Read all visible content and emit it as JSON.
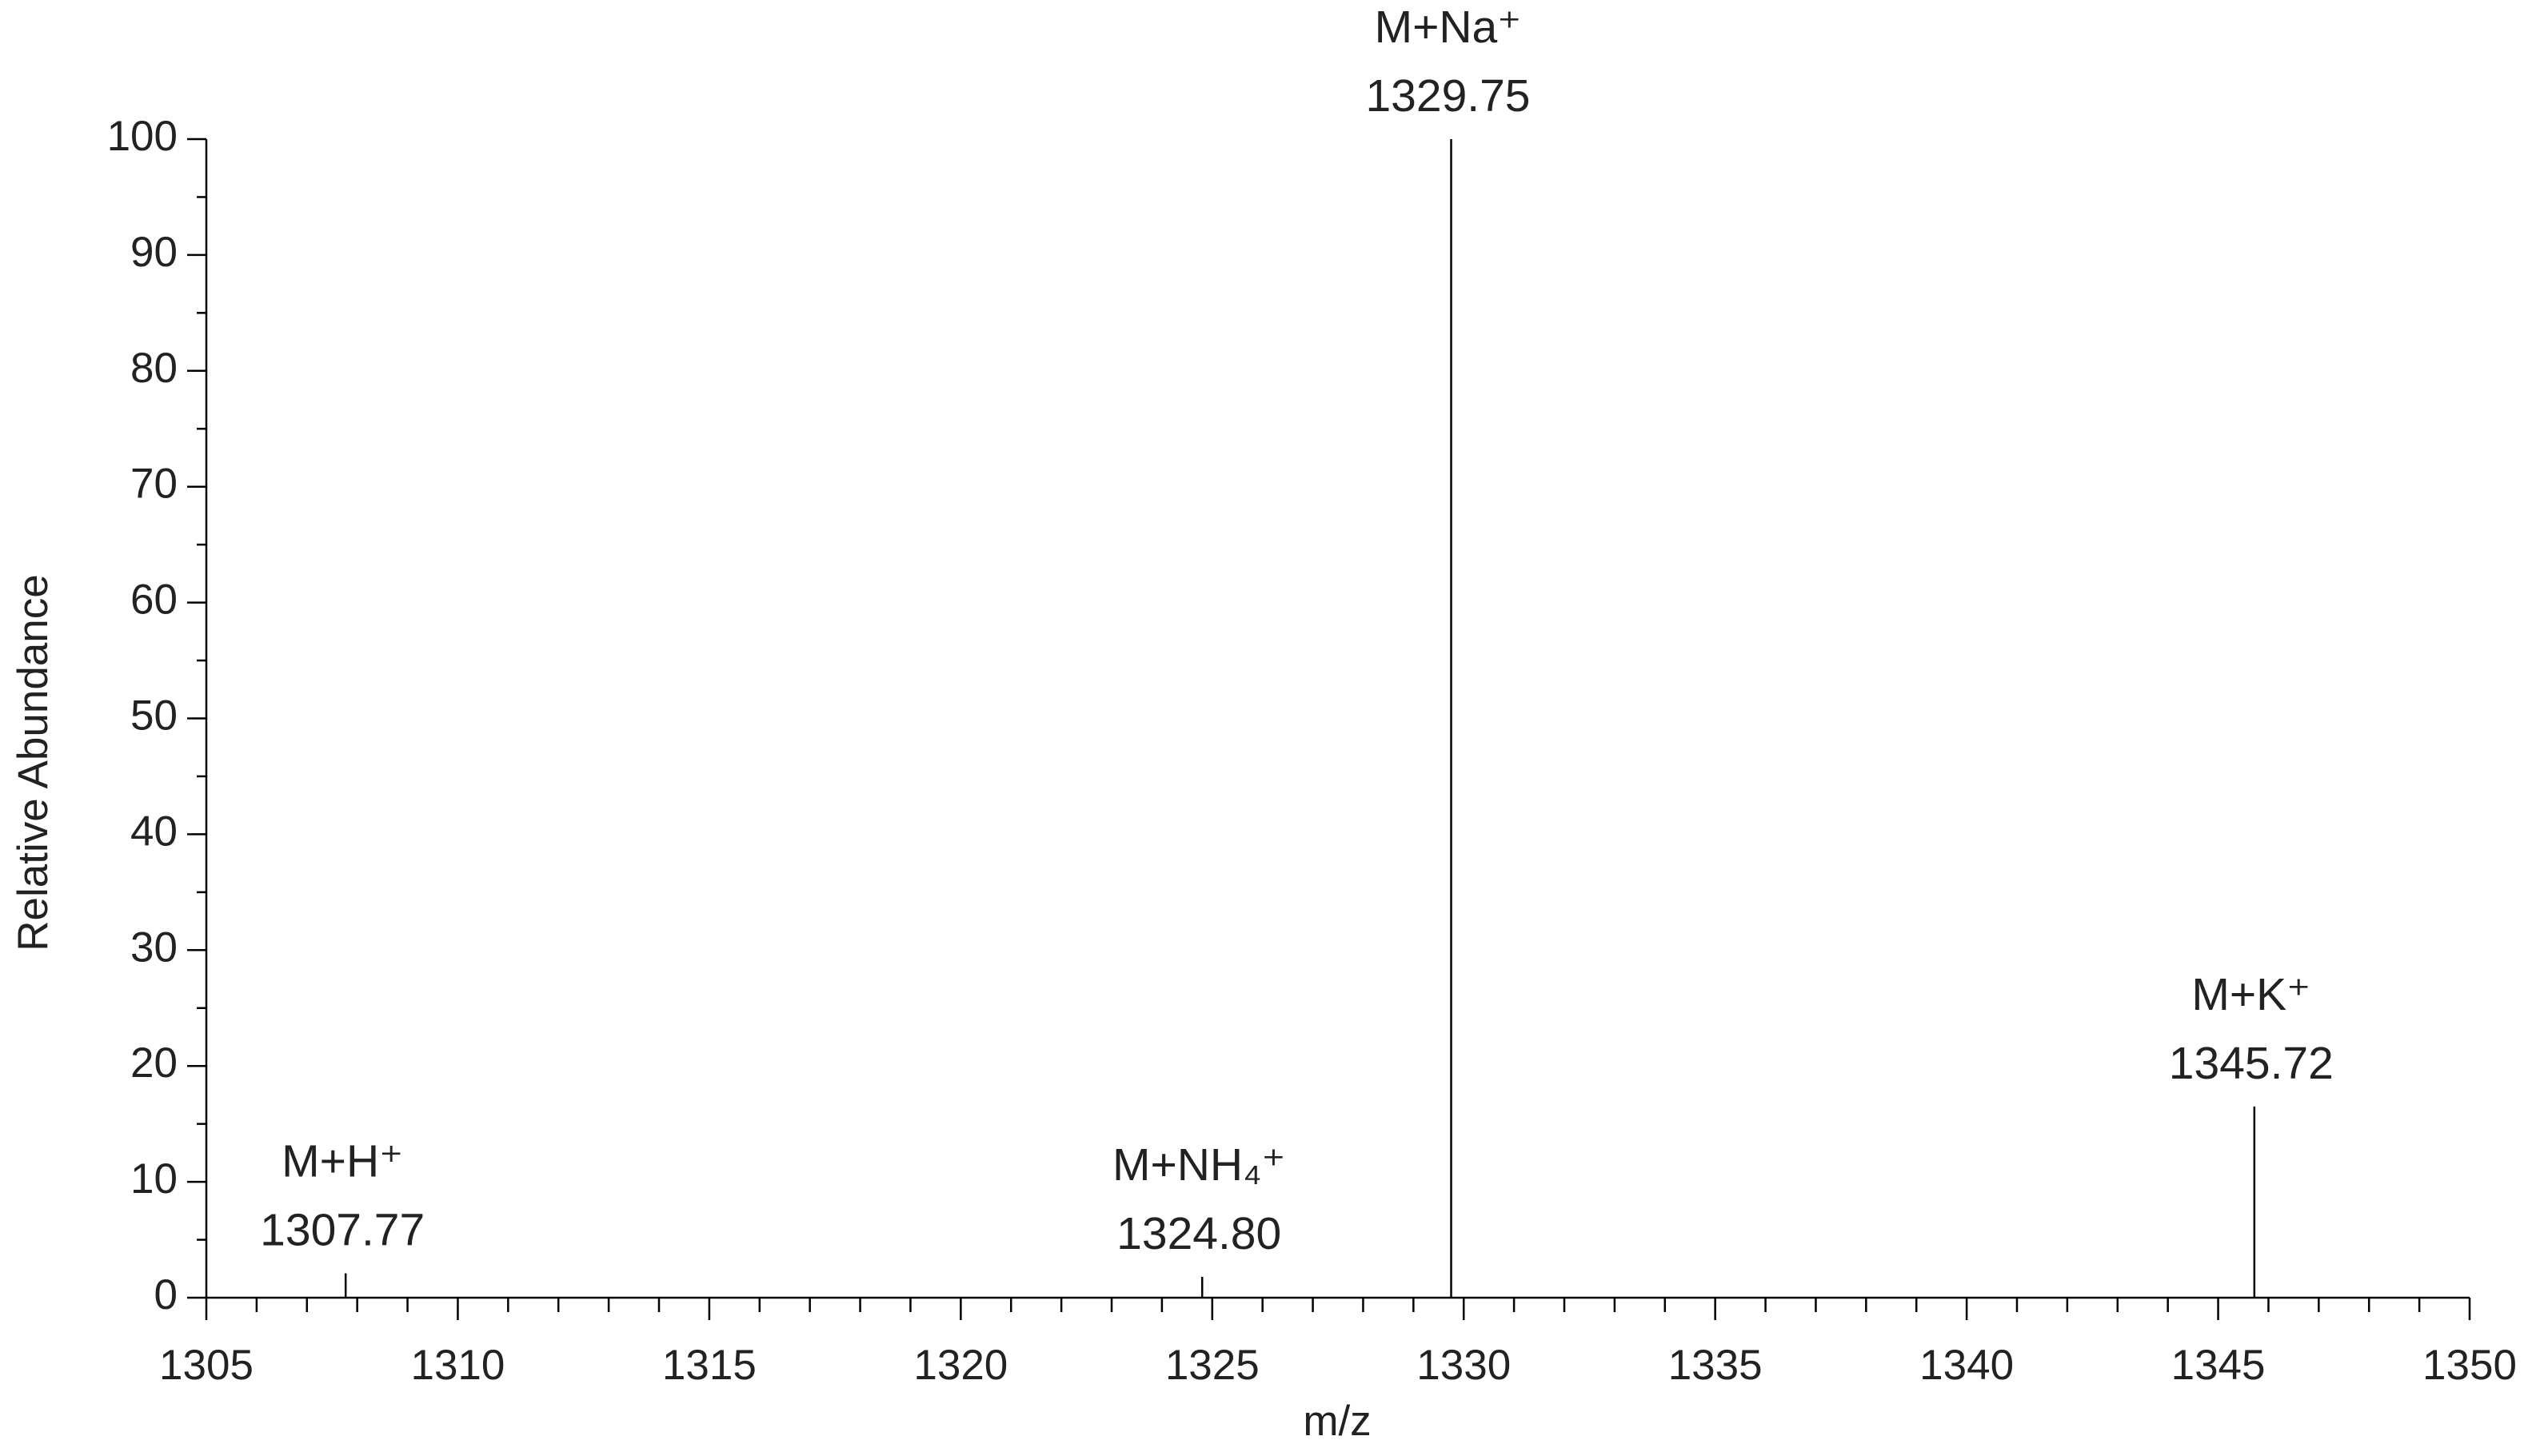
{
  "chart_data": {
    "type": "spectrum",
    "xlabel": "m/z",
    "ylabel": "Relative Abundance",
    "x": [
      1307.77,
      1324.8,
      1329.75,
      1345.72
    ],
    "values": [
      2.1,
      1.8,
      100,
      16.5
    ],
    "peak_labels": [
      "1307.77",
      "1324.80",
      "1329.75",
      "1345.72"
    ],
    "annotations": [
      "M+H⁺",
      "M+NH₄⁺",
      "M+Na⁺",
      "M+K⁺"
    ],
    "color": "#000000",
    "xlim": [
      1305,
      1350
    ],
    "xticks": [
      1305,
      1310,
      1315,
      1320,
      1325,
      1330,
      1335,
      1340,
      1345,
      1350
    ],
    "xminorticks": [
      1306,
      1307,
      1308,
      1309,
      1311,
      1312,
      1313,
      1314,
      1316,
      1317,
      1318,
      1319,
      1321,
      1322,
      1323,
      1324,
      1326,
      1327,
      1328,
      1329,
      1331,
      1332,
      1333,
      1334,
      1336,
      1337,
      1338,
      1339,
      1341,
      1342,
      1343,
      1344,
      1346,
      1347,
      1348,
      1349
    ],
    "ylim": [
      0,
      100
    ],
    "yticks": [
      0,
      10,
      20,
      30,
      40,
      50,
      60,
      70,
      80,
      90,
      100
    ],
    "yminorticks": [
      5,
      15,
      25,
      35,
      45,
      55,
      65,
      75,
      85,
      95
    ],
    "grid": false
  }
}
